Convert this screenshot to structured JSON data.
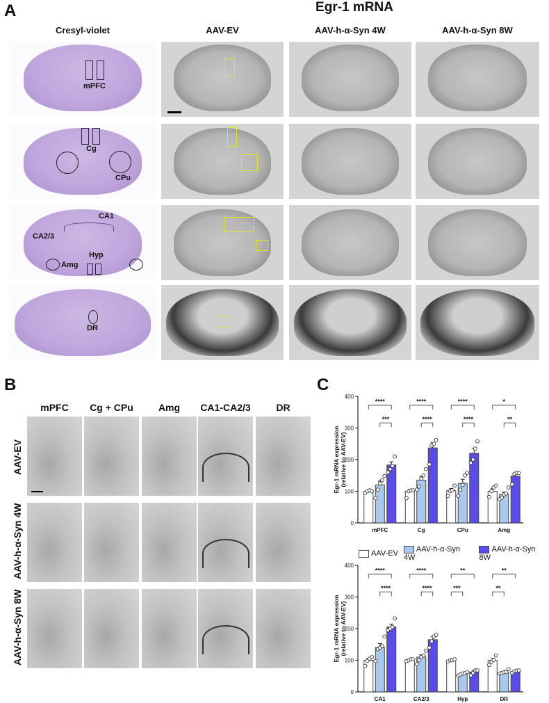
{
  "panel_labels": {
    "a": "A",
    "b": "B",
    "c": "C"
  },
  "panel_a": {
    "title": "Egr-1 mRNA",
    "columns": [
      "Cresyl-violet",
      "AAV-EV",
      "AAV-h-α-Syn 4W",
      "AAV-h-α-Syn 8W"
    ],
    "region_labels": {
      "row1": [
        "mPFC"
      ],
      "row2": [
        "Cg",
        "CPu"
      ],
      "row3": [
        "CA1",
        "CA2/3",
        "Hyp",
        "Amg"
      ],
      "row4": [
        "DR"
      ]
    }
  },
  "panel_b": {
    "columns": [
      "mPFC",
      "Cg + CPu",
      "Amg",
      "CA1-CA2/3",
      "DR"
    ],
    "rows": [
      "AAV-EV",
      "AAV-h-α-Syn 4W",
      "AAV-h-α-Syn 8W"
    ]
  },
  "legend": {
    "items": [
      {
        "label": "AAV-EV",
        "color": "#ffffff"
      },
      {
        "label": "AAV-h-α-Syn 4W",
        "color": "#a9c8ee"
      },
      {
        "label": "AAV-h-α-Syn 8W",
        "color": "#5a4ce6"
      }
    ]
  },
  "chart_data": [
    {
      "type": "bar",
      "ylabel": [
        "Egr-1 mRNA expression",
        "(relative to AAV-EV)"
      ],
      "ylim": [
        0,
        400
      ],
      "yticks": [
        "0",
        "100",
        "200",
        "300",
        "400"
      ],
      "categories": [
        "mPFC",
        "Cg",
        "CPu",
        "Amg"
      ],
      "series": [
        {
          "name": "AAV-EV",
          "values": [
            100,
            100,
            102,
            100
          ],
          "errors": [
            3,
            6,
            7,
            8
          ],
          "points": [
            [
              95,
              100,
              103,
              100
            ],
            [
              78,
              100,
              103,
              103
            ],
            [
              85,
              100,
              103,
              118
            ],
            [
              82,
              100,
              112,
              118
            ]
          ]
        },
        {
          "name": "AAV-h-α-Syn 4W",
          "values": [
            120,
            135,
            125,
            90
          ],
          "errors": [
            12,
            12,
            13,
            7
          ],
          "points": [
            [
              78,
              105,
              125,
              135,
              148
            ],
            [
              105,
              115,
              140,
              150,
              170
            ],
            [
              85,
              105,
              120,
              150,
              158
            ],
            [
              75,
              80,
              90,
              93,
              112
            ]
          ]
        },
        {
          "name": "AAV-h-α-Syn 8W",
          "values": [
            183,
            237,
            220,
            148
          ],
          "errors": [
            10,
            17,
            16,
            9
          ],
          "points": [
            [
              160,
              170,
              180,
              210
            ],
            [
              185,
              245,
              250,
              262
            ],
            [
              190,
              200,
              235,
              258
            ],
            [
              122,
              155,
              158,
              158
            ]
          ]
        }
      ],
      "significance": [
        [
          {
            "pair": [
              0,
              2
            ],
            "label": "****"
          },
          {
            "pair": [
              1,
              2
            ],
            "label": "***"
          }
        ],
        [
          {
            "pair": [
              0,
              2
            ],
            "label": "****"
          },
          {
            "pair": [
              1,
              2
            ],
            "label": "****"
          }
        ],
        [
          {
            "pair": [
              0,
              2
            ],
            "label": "****"
          },
          {
            "pair": [
              1,
              2
            ],
            "label": "****"
          }
        ],
        [
          {
            "pair": [
              0,
              2
            ],
            "label": "*"
          },
          {
            "pair": [
              1,
              2
            ],
            "label": "**"
          }
        ]
      ]
    },
    {
      "type": "bar",
      "ylabel": [
        "Egr-1 mRNA expression",
        "(relative to AAV-EV)"
      ],
      "ylim": [
        0,
        400
      ],
      "yticks": [
        "0",
        "100",
        "200",
        "300",
        "400"
      ],
      "categories": [
        "CA1",
        "CA2/3",
        "Hyp",
        "DR"
      ],
      "series": [
        {
          "name": "AAV-EV",
          "values": [
            100,
            100,
            100,
            100
          ],
          "errors": [
            6,
            2,
            2,
            6
          ],
          "points": [
            [
              82,
              98,
              105,
              110
            ],
            [
              97,
              100,
              103,
              103
            ],
            [
              96,
              100,
              100,
              103
            ],
            [
              85,
              95,
              100,
              115
            ]
          ]
        },
        {
          "name": "AAV-h-α-Syn 4W",
          "values": [
            140,
            110,
            57,
            62
          ],
          "errors": [
            13,
            7,
            2,
            3
          ],
          "points": [
            [
              97,
              135,
              140,
              145,
              175
            ],
            [
              88,
              100,
              110,
              115,
              130
            ],
            [
              52,
              55,
              58,
              60,
              63
            ],
            [
              58,
              60,
              62,
              63,
              72
            ]
          ]
        },
        {
          "name": "AAV-h-α-Syn 8W",
          "values": [
            205,
            165,
            63,
            65
          ],
          "errors": [
            9,
            9,
            4,
            2
          ],
          "points": [
            [
              195,
              200,
              205,
              232
            ],
            [
              140,
              160,
              175,
              180
            ],
            [
              52,
              60,
              68,
              68
            ],
            [
              60,
              65,
              67,
              68
            ]
          ]
        }
      ],
      "significance": [
        [
          {
            "pair": [
              0,
              2
            ],
            "label": "****"
          },
          {
            "pair": [
              1,
              2
            ],
            "label": "****"
          }
        ],
        [
          {
            "pair": [
              0,
              2
            ],
            "label": "****"
          },
          {
            "pair": [
              1,
              2
            ],
            "label": "****"
          }
        ],
        [
          {
            "pair": [
              0,
              2
            ],
            "label": "**"
          },
          {
            "pair": [
              0,
              1
            ],
            "label": "***"
          }
        ],
        [
          {
            "pair": [
              0,
              2
            ],
            "label": "**"
          },
          {
            "pair": [
              0,
              1
            ],
            "label": "**"
          }
        ]
      ]
    }
  ]
}
